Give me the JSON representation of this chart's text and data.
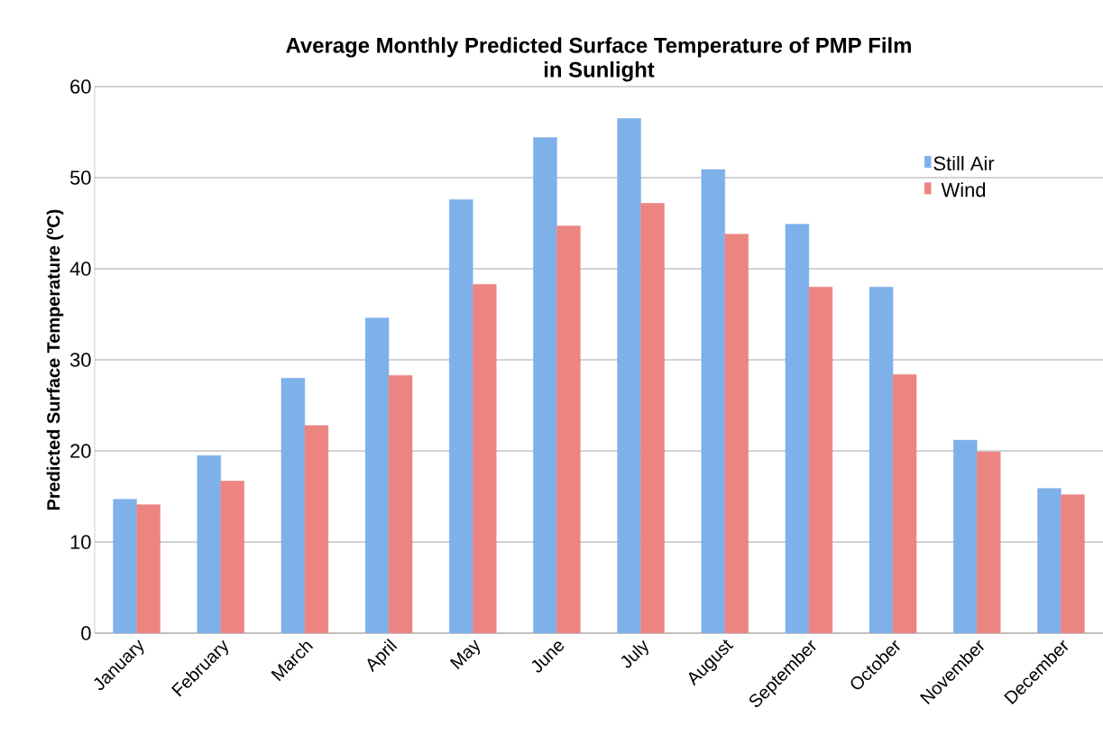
{
  "chart_data": {
    "type": "bar",
    "title": "Average Monthly Predicted Surface Temperature of PMP Film\nin Sunlight",
    "ylabel": "Predicted Surface Temperature (ºC)",
    "categories": [
      "January",
      "February",
      "March",
      "April",
      "May",
      "June",
      "July",
      "August",
      "September",
      "October",
      "November",
      "December"
    ],
    "series": [
      {
        "name": "Still Air",
        "color": "#7eb0ea",
        "values": [
          14.7,
          19.5,
          28.0,
          34.6,
          47.6,
          54.4,
          56.5,
          50.9,
          44.9,
          38.0,
          21.2,
          15.9
        ]
      },
      {
        "name": "Wind",
        "color": "#ec8582",
        "values": [
          14.1,
          16.7,
          22.8,
          28.3,
          38.3,
          44.7,
          47.2,
          43.8,
          38.0,
          28.4,
          19.9,
          15.2
        ]
      }
    ],
    "ylim": [
      0,
      60
    ],
    "yticks": [
      0,
      10,
      20,
      30,
      40,
      50,
      60
    ],
    "grid": "y",
    "legend": "top right"
  }
}
